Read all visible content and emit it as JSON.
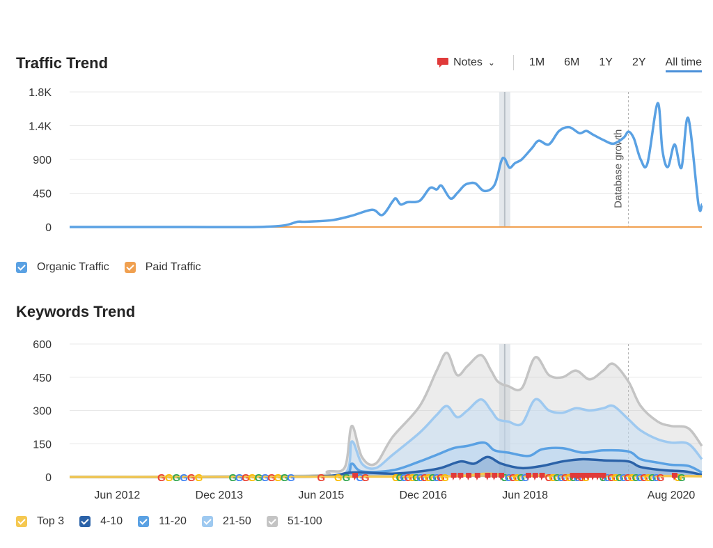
{
  "traffic": {
    "title": "Traffic Trend",
    "notes_label": "Notes",
    "ranges": [
      "1M",
      "6M",
      "1Y",
      "2Y",
      "All time"
    ],
    "active_range": "All time",
    "legend": [
      {
        "label": "Organic Traffic",
        "color": "#5aa1e3"
      },
      {
        "label": "Paid Traffic",
        "color": "#f0a050"
      }
    ]
  },
  "keywords": {
    "title": "Keywords Trend",
    "legend": [
      {
        "label": "Top 3",
        "color": "#f5c851"
      },
      {
        "label": "4-10",
        "color": "#2b62a8"
      },
      {
        "label": "11-20",
        "color": "#5aa1e3"
      },
      {
        "label": "21-50",
        "color": "#9ec9f0"
      },
      {
        "label": "51-100",
        "color": "#c4c4c4"
      }
    ]
  },
  "chart_data": [
    {
      "type": "line",
      "title": "Traffic Trend",
      "y_ticks": [
        "0",
        "450",
        "900",
        "1.4K",
        "1.8K"
      ],
      "ylim": [
        0,
        1800
      ],
      "xlim": [
        2011.75,
        2021.05
      ],
      "annotation": {
        "label": "Database growth",
        "x": 2019.97
      },
      "highlight_x": 2018.15,
      "grid": true,
      "legend_position": "bottom-left",
      "series": [
        {
          "name": "Organic Traffic",
          "color": "#5aa1e3",
          "x": [
            2011.75,
            2012.5,
            2013.5,
            2014.5,
            2014.9,
            2015.1,
            2015.2,
            2015.6,
            2015.9,
            2016.2,
            2016.35,
            2016.5,
            2016.55,
            2016.62,
            2016.72,
            2016.9,
            2017.05,
            2017.15,
            2017.22,
            2017.35,
            2017.45,
            2017.55,
            2017.62,
            2017.72,
            2017.85,
            2018.0,
            2018.1,
            2018.15,
            2018.22,
            2018.3,
            2018.4,
            2018.55,
            2018.65,
            2018.8,
            2018.95,
            2019.1,
            2019.25,
            2019.35,
            2019.45,
            2019.6,
            2019.75,
            2019.9,
            2019.97,
            2020.05,
            2020.15,
            2020.25,
            2020.4,
            2020.47,
            2020.55,
            2020.65,
            2020.75,
            2020.85,
            2021.0,
            2021.05
          ],
          "y": [
            0,
            0,
            0,
            0,
            20,
            70,
            70,
            90,
            150,
            230,
            160,
            340,
            380,
            300,
            330,
            350,
            520,
            500,
            550,
            380,
            450,
            550,
            580,
            580,
            480,
            560,
            880,
            910,
            790,
            850,
            900,
            1050,
            1150,
            1100,
            1280,
            1330,
            1250,
            1280,
            1230,
            1160,
            1110,
            1190,
            1270,
            1180,
            900,
            850,
            1650,
            1020,
            800,
            1100,
            790,
            1450,
            300,
            300
          ]
        },
        {
          "name": "Paid Traffic",
          "color": "#f0a050",
          "x": [
            2011.75,
            2021.05
          ],
          "y": [
            0,
            0
          ]
        }
      ]
    },
    {
      "type": "area",
      "title": "Keywords Trend",
      "x_ticks": [
        "Jun 2012",
        "Dec 2013",
        "Jun 2015",
        "Dec 2016",
        "Jun 2018",
        "Aug 2020"
      ],
      "x_tick_values": [
        2012.45,
        2013.95,
        2015.45,
        2016.95,
        2018.45,
        2020.6
      ],
      "y_ticks": [
        "0",
        "150",
        "300",
        "450",
        "600"
      ],
      "ylim": [
        0,
        600
      ],
      "xlim": [
        2011.75,
        2021.05
      ],
      "grid": true,
      "legend_position": "bottom-left",
      "series": [
        {
          "name": "51-100",
          "color": "#c4c4c4",
          "x": [
            2011.75,
            2015.2,
            2015.55,
            2015.8,
            2015.9,
            2016.05,
            2016.25,
            2016.5,
            2016.9,
            2017.15,
            2017.3,
            2017.45,
            2017.6,
            2017.8,
            2017.95,
            2018.05,
            2018.2,
            2018.4,
            2018.6,
            2018.8,
            2019.0,
            2019.2,
            2019.4,
            2019.6,
            2019.75,
            2019.97,
            2020.15,
            2020.4,
            2020.6,
            2020.85,
            2021.05
          ],
          "y": [
            0,
            5,
            25,
            45,
            230,
            90,
            60,
            180,
            320,
            480,
            560,
            460,
            500,
            550,
            480,
            430,
            410,
            400,
            540,
            460,
            450,
            480,
            440,
            480,
            510,
            430,
            320,
            250,
            230,
            220,
            140
          ]
        },
        {
          "name": "21-50",
          "color": "#9ec9f0",
          "x": [
            2011.75,
            2015.2,
            2015.8,
            2015.9,
            2016.05,
            2016.25,
            2016.5,
            2016.9,
            2017.15,
            2017.3,
            2017.45,
            2017.6,
            2017.8,
            2017.95,
            2018.05,
            2018.2,
            2018.4,
            2018.6,
            2018.8,
            2019.0,
            2019.2,
            2019.4,
            2019.6,
            2019.75,
            2019.97,
            2020.15,
            2020.4,
            2020.6,
            2020.85,
            2021.05
          ],
          "y": [
            0,
            3,
            15,
            160,
            60,
            40,
            100,
            200,
            280,
            320,
            270,
            300,
            350,
            300,
            260,
            250,
            240,
            350,
            300,
            290,
            310,
            300,
            310,
            320,
            260,
            210,
            170,
            155,
            150,
            80
          ]
        },
        {
          "name": "11-20",
          "color": "#5aa1e3",
          "x": [
            2011.75,
            2015.2,
            2015.8,
            2015.9,
            2016.05,
            2016.5,
            2016.9,
            2017.15,
            2017.4,
            2017.6,
            2017.85,
            2018.0,
            2018.2,
            2018.5,
            2018.7,
            2019.0,
            2019.3,
            2019.6,
            2019.97,
            2020.15,
            2020.4,
            2020.6,
            2020.85,
            2021.05
          ],
          "y": [
            0,
            2,
            8,
            60,
            25,
            30,
            70,
            100,
            130,
            140,
            155,
            120,
            110,
            95,
            125,
            130,
            110,
            120,
            115,
            80,
            65,
            55,
            50,
            20
          ]
        },
        {
          "name": "4-10",
          "color": "#2b62a8",
          "x": [
            2011.75,
            2015.2,
            2015.9,
            2016.5,
            2016.9,
            2017.2,
            2017.5,
            2017.7,
            2017.9,
            2018.1,
            2018.4,
            2018.7,
            2019.0,
            2019.3,
            2019.6,
            2019.97,
            2020.15,
            2020.5,
            2020.8,
            2021.05
          ],
          "y": [
            0,
            1,
            20,
            15,
            25,
            40,
            70,
            60,
            90,
            60,
            40,
            50,
            70,
            80,
            75,
            70,
            45,
            30,
            25,
            10
          ]
        },
        {
          "name": "Top 3",
          "color": "#f5c851",
          "x": [
            2011.75,
            2016.5,
            2017.5,
            2017.9,
            2018.3,
            2019.0,
            2020.0,
            2021.05
          ],
          "y": [
            0,
            2,
            5,
            15,
            5,
            8,
            6,
            3
          ]
        }
      ]
    }
  ]
}
